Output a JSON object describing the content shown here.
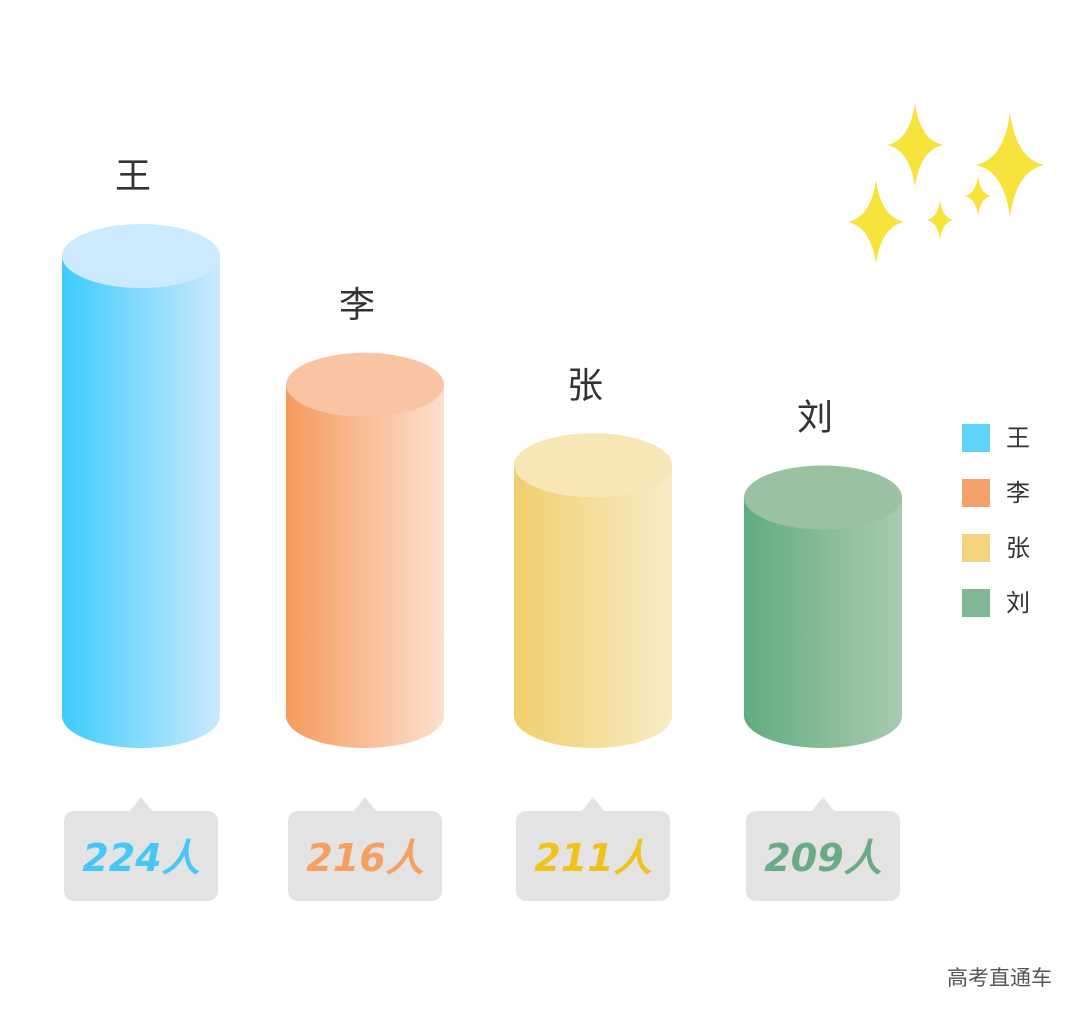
{
  "chart_data": {
    "type": "bar",
    "categories": [
      "王",
      "李",
      "张",
      "刘"
    ],
    "values": [
      224,
      216,
      211,
      209
    ],
    "value_labels": [
      "224人",
      "216人",
      "211人",
      "209人"
    ],
    "unit": "人",
    "legend_placement": "right",
    "grid": false,
    "colors": [
      "#4dcdf7",
      "#f5a26a",
      "#f0d177",
      "#6fb08a"
    ],
    "value_text_colors": [
      "#45c8f5",
      "#f5a063",
      "#f0c21e",
      "#6aab85"
    ]
  },
  "legend": {
    "items": [
      {
        "label": "王",
        "color": "#5fd3fa"
      },
      {
        "label": "李",
        "color": "#f5a26a"
      },
      {
        "label": "张",
        "color": "#f2d47e"
      },
      {
        "label": "刘",
        "color": "#80b896"
      }
    ]
  },
  "decoration": {
    "icon": "sparkle-icon",
    "color": "#f7e33b"
  },
  "watermark": "高考直通车"
}
